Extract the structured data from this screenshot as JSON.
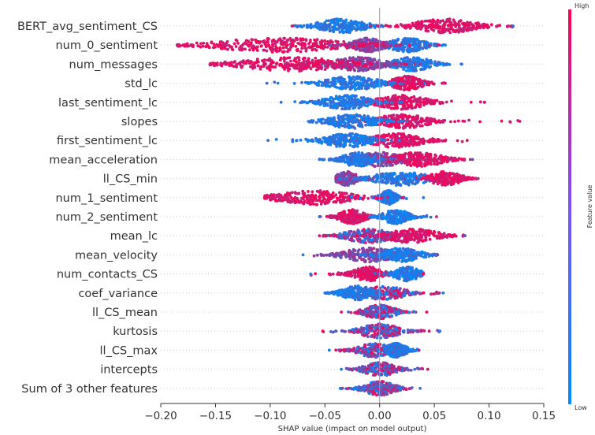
{
  "chart_data": {
    "type": "scatter",
    "subtype": "shap-beeswarm",
    "title": "",
    "xlabel": "SHAP value (impact on model output)",
    "ylabel": "",
    "xlim": [
      -0.2,
      0.15
    ],
    "xticks": [
      "−0.20",
      "−0.15",
      "−0.10",
      "−0.05",
      "0.00",
      "0.05",
      "0.10",
      "0.15"
    ],
    "xtick_values": [
      -0.2,
      -0.15,
      -0.1,
      -0.05,
      0.0,
      0.05,
      0.1,
      0.15
    ],
    "zero_line": 0.0,
    "grid": false,
    "colorbar": {
      "label": "Feature value",
      "high": "High",
      "low": "Low",
      "color_low": "#008bfb",
      "color_high": "#ff0052"
    },
    "features": [
      {
        "name": "BERT_avg_sentiment_CS",
        "min": -0.08,
        "max": 0.122,
        "clusters": [
          {
            "center": -0.035,
            "spread": 0.018,
            "color": "low"
          },
          {
            "center": 0.06,
            "spread": 0.024,
            "color": "high"
          }
        ]
      },
      {
        "name": "num_0_sentiment",
        "min": -0.185,
        "max": 0.06,
        "clusters": [
          {
            "center": 0.025,
            "spread": 0.014,
            "color": "low"
          },
          {
            "center": -0.01,
            "spread": 0.012,
            "color": "mid"
          },
          {
            "center": -0.09,
            "spread": 0.05,
            "color": "high"
          }
        ]
      },
      {
        "name": "num_messages",
        "min": -0.155,
        "max": 0.075,
        "clusters": [
          {
            "center": 0.03,
            "spread": 0.015,
            "color": "low"
          },
          {
            "center": -0.02,
            "spread": 0.02,
            "color": "mid"
          },
          {
            "center": -0.08,
            "spread": 0.04,
            "color": "high"
          }
        ]
      },
      {
        "name": "std_lc",
        "min": -0.103,
        "max": 0.06,
        "clusters": [
          {
            "center": 0.025,
            "spread": 0.012,
            "color": "high"
          },
          {
            "center": -0.025,
            "spread": 0.02,
            "color": "low"
          }
        ]
      },
      {
        "name": "last_sentiment_lc",
        "min": -0.09,
        "max": 0.096,
        "clusters": [
          {
            "center": 0.02,
            "spread": 0.02,
            "color": "high"
          },
          {
            "center": -0.03,
            "spread": 0.018,
            "color": "low"
          }
        ]
      },
      {
        "name": "slopes",
        "min": -0.065,
        "max": 0.128,
        "clusters": [
          {
            "center": 0.02,
            "spread": 0.02,
            "color": "high"
          },
          {
            "center": -0.025,
            "spread": 0.018,
            "color": "low"
          }
        ]
      },
      {
        "name": "first_sentiment_lc",
        "min": -0.102,
        "max": 0.08,
        "clusters": [
          {
            "center": 0.015,
            "spread": 0.02,
            "color": "high"
          },
          {
            "center": -0.03,
            "spread": 0.018,
            "color": "low"
          }
        ]
      },
      {
        "name": "mean_acceleration",
        "min": -0.055,
        "max": 0.085,
        "clusters": [
          {
            "center": 0.0,
            "spread": 0.018,
            "color": "mid"
          },
          {
            "center": 0.035,
            "spread": 0.02,
            "color": "high"
          },
          {
            "center": -0.02,
            "spread": 0.012,
            "color": "low"
          }
        ]
      },
      {
        "name": "ll_CS_min",
        "min": -0.04,
        "max": 0.09,
        "clusters": [
          {
            "center": -0.03,
            "spread": 0.008,
            "color": "mid"
          },
          {
            "center": 0.02,
            "spread": 0.02,
            "color": "low"
          },
          {
            "center": 0.06,
            "spread": 0.012,
            "color": "high"
          }
        ]
      },
      {
        "name": "num_1_sentiment",
        "min": -0.105,
        "max": 0.04,
        "clusters": [
          {
            "center": 0.008,
            "spread": 0.006,
            "color": "low"
          },
          {
            "center": -0.06,
            "spread": 0.03,
            "color": "high"
          }
        ]
      },
      {
        "name": "num_2_sentiment",
        "min": -0.055,
        "max": 0.052,
        "clusters": [
          {
            "center": -0.025,
            "spread": 0.01,
            "color": "high"
          },
          {
            "center": 0.015,
            "spread": 0.01,
            "color": "low"
          }
        ]
      },
      {
        "name": "mean_lc",
        "min": -0.055,
        "max": 0.078,
        "clusters": [
          {
            "center": -0.01,
            "spread": 0.018,
            "color": "mix"
          },
          {
            "center": 0.03,
            "spread": 0.02,
            "color": "high"
          }
        ]
      },
      {
        "name": "mean_velocity",
        "min": -0.07,
        "max": 0.053,
        "clusters": [
          {
            "center": -0.01,
            "spread": 0.02,
            "color": "mid"
          },
          {
            "center": 0.02,
            "spread": 0.015,
            "color": "low"
          }
        ]
      },
      {
        "name": "num_contacts_CS",
        "min": -0.063,
        "max": 0.04,
        "clusters": [
          {
            "center": -0.01,
            "spread": 0.012,
            "color": "high"
          },
          {
            "center": 0.025,
            "spread": 0.01,
            "color": "low"
          }
        ]
      },
      {
        "name": "coef_variance",
        "min": -0.05,
        "max": 0.058,
        "clusters": [
          {
            "center": 0.005,
            "spread": 0.015,
            "color": "mix"
          },
          {
            "center": -0.02,
            "spread": 0.012,
            "color": "low"
          }
        ]
      },
      {
        "name": "ll_CS_mean",
        "min": -0.035,
        "max": 0.043,
        "clusters": [
          {
            "center": 0.0,
            "spread": 0.012,
            "color": "mix"
          }
        ]
      },
      {
        "name": "kurtosis",
        "min": -0.052,
        "max": 0.055,
        "clusters": [
          {
            "center": 0.0,
            "spread": 0.015,
            "color": "mix"
          }
        ]
      },
      {
        "name": "ll_CS_max",
        "min": -0.046,
        "max": 0.036,
        "clusters": [
          {
            "center": -0.005,
            "spread": 0.012,
            "color": "mix"
          },
          {
            "center": 0.015,
            "spread": 0.008,
            "color": "low"
          }
        ]
      },
      {
        "name": "intercepts",
        "min": -0.035,
        "max": 0.044,
        "clusters": [
          {
            "center": 0.0,
            "spread": 0.012,
            "color": "mix"
          }
        ]
      },
      {
        "name": "Sum of 3 other features",
        "min": -0.036,
        "max": 0.037,
        "clusters": [
          {
            "center": 0.0,
            "spread": 0.012,
            "color": "mix"
          }
        ]
      }
    ]
  }
}
